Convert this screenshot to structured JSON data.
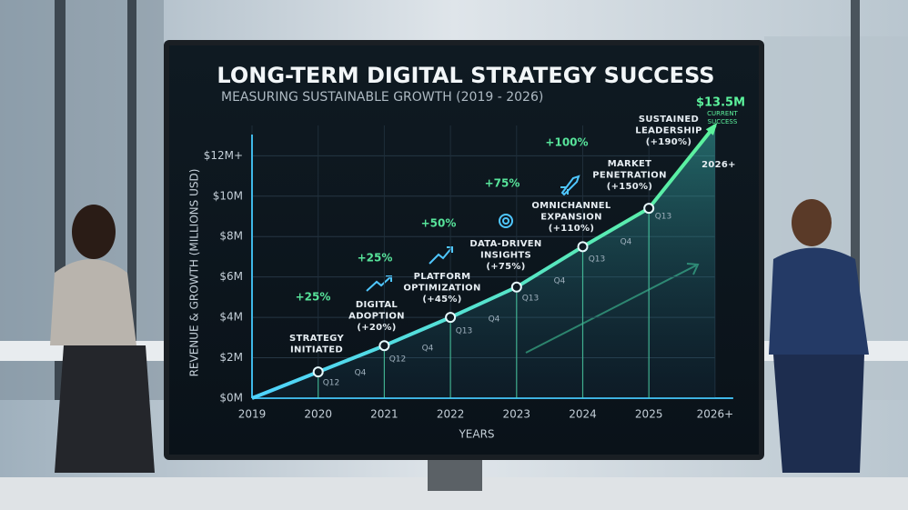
{
  "chart_data": {
    "type": "line",
    "title": "LONG-TERM DIGITAL STRATEGY SUCCESS",
    "subtitle": "MEASURING SUSTAINABLE GROWTH (2019 - 2026)",
    "y_label": "REVENUE & GROWTH (MILLIONS USD)",
    "x_label": "YEARS",
    "categories": [
      "2019",
      "2020",
      "2021",
      "2022",
      "2023",
      "2024",
      "2025",
      "2026+"
    ],
    "values": [
      0,
      1.3,
      2.6,
      4.0,
      5.5,
      7.5,
      9.4,
      13.5
    ],
    "color": "#4fe3b0",
    "ylim": [
      0,
      13.5
    ],
    "yticks": [
      {
        "value": 0,
        "label": "$0M"
      },
      {
        "value": 2,
        "label": "$2M"
      },
      {
        "value": 4,
        "label": "$4M"
      },
      {
        "value": 6,
        "label": "$6M"
      },
      {
        "value": 8,
        "label": "$8M"
      },
      {
        "value": 10,
        "label": "$10M"
      },
      {
        "value": 12,
        "label": "$12M+"
      }
    ],
    "grid": true,
    "milestones": [
      {
        "lines": [
          "STRATEGY",
          "INITIATED"
        ]
      },
      {
        "lines": [
          "DIGITAL",
          "ADOPTION",
          "(+20%)"
        ]
      },
      {
        "lines": [
          "PLATFORM",
          "OPTIMIZATION",
          "(+45%)"
        ]
      },
      {
        "lines": [
          "DATA-DRIVEN",
          "INSIGHTS",
          "(+75%)"
        ]
      },
      {
        "lines": [
          "OMNICHANNEL",
          "EXPANSION",
          "(+110%)"
        ]
      },
      {
        "lines": [
          "MARKET",
          "PENETRATION",
          "(+150%)"
        ]
      },
      {
        "lines": [
          "SUSTAINED",
          "LEADERSHIP",
          "(+190%)"
        ]
      }
    ],
    "growth_labels": [
      "+25%",
      "+25%",
      "+50%",
      "+75%",
      "+100%"
    ],
    "quarter_labels": [
      "Q12",
      "Q4",
      "Q12",
      "Q4",
      "Q13",
      "Q4",
      "Q13",
      "Q4",
      "Q13",
      "Q4",
      "Q13"
    ],
    "end_label": "2026+",
    "callout": {
      "value_text": "$13.5M",
      "lines": [
        "CURRENT",
        "SUCCESS"
      ]
    }
  }
}
